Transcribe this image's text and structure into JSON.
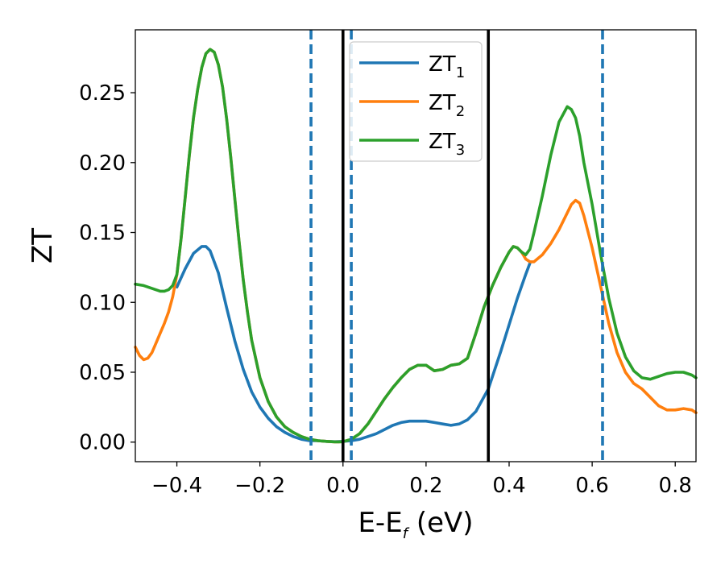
{
  "chart_data": {
    "type": "line",
    "title": "",
    "xlabel_main": "E-E",
    "xlabel_sub": "f",
    "xlabel_unit": " (eV)",
    "ylabel": "ZT",
    "xlim": [
      -0.5,
      0.85
    ],
    "ylim": [
      -0.014,
      0.295
    ],
    "xticks": [
      -0.4,
      -0.2,
      0.0,
      0.2,
      0.4,
      0.6,
      0.8
    ],
    "xtick_labels": [
      "−0.4",
      "−0.2",
      "0.0",
      "0.2",
      "0.4",
      "0.6",
      "0.8"
    ],
    "yticks": [
      0.0,
      0.05,
      0.1,
      0.15,
      0.2,
      0.25
    ],
    "ytick_labels": [
      "0.00",
      "0.05",
      "0.10",
      "0.15",
      "0.20",
      "0.25"
    ],
    "grid": false,
    "legend_position": "top-center",
    "vlines_solid": [
      0.0,
      0.35
    ],
    "vlines_dashed": [
      -0.077,
      0.02,
      0.625
    ],
    "vline_solid_color": "#000000",
    "vline_dashed_color": "#1f77b4",
    "series": [
      {
        "name_main": "ZT",
        "name_sub": "1",
        "color": "#1f77b4",
        "x": [
          -0.4,
          -0.38,
          -0.36,
          -0.34,
          -0.33,
          -0.32,
          -0.3,
          -0.28,
          -0.26,
          -0.24,
          -0.22,
          -0.2,
          -0.18,
          -0.16,
          -0.14,
          -0.12,
          -0.1,
          -0.08,
          -0.06,
          -0.04,
          -0.02,
          0.0,
          0.02,
          0.04,
          0.06,
          0.08,
          0.1,
          0.12,
          0.14,
          0.16,
          0.18,
          0.2,
          0.22,
          0.24,
          0.26,
          0.28,
          0.3,
          0.32,
          0.35,
          0.38,
          0.4,
          0.42,
          0.44,
          0.45
        ],
        "y": [
          0.111,
          0.124,
          0.135,
          0.14,
          0.14,
          0.137,
          0.121,
          0.096,
          0.072,
          0.052,
          0.036,
          0.025,
          0.017,
          0.011,
          0.007,
          0.004,
          0.002,
          0.001,
          0.001,
          0.0005,
          0.0003,
          0.0005,
          0.001,
          0.002,
          0.004,
          0.006,
          0.009,
          0.012,
          0.014,
          0.015,
          0.015,
          0.015,
          0.014,
          0.013,
          0.012,
          0.013,
          0.016,
          0.022,
          0.038,
          0.065,
          0.084,
          0.103,
          0.12,
          0.128
        ]
      },
      {
        "name_main": "ZT",
        "name_sub": "2",
        "color": "#ff7f0e",
        "x": [
          -0.5,
          -0.49,
          -0.48,
          -0.47,
          -0.46,
          -0.45,
          -0.44,
          -0.43,
          -0.42,
          -0.41,
          -0.4,
          -0.39,
          -0.38,
          -0.37,
          -0.36,
          -0.35,
          -0.34,
          -0.33,
          -0.32,
          -0.31,
          -0.3,
          -0.29,
          -0.28,
          -0.27,
          -0.26,
          -0.25,
          -0.24,
          -0.23,
          -0.22,
          -0.2,
          -0.18,
          -0.16,
          -0.14,
          -0.12,
          -0.1,
          -0.08,
          -0.06,
          -0.04,
          -0.02,
          -0.01,
          0.0,
          0.02,
          0.04,
          0.06,
          0.08,
          0.1,
          0.12,
          0.14,
          0.16,
          0.18,
          0.2,
          0.22,
          0.24,
          0.26,
          0.28,
          0.3,
          0.32,
          0.34,
          0.36,
          0.38,
          0.4,
          0.41,
          0.42,
          0.43,
          0.44,
          0.45,
          0.46,
          0.48,
          0.5,
          0.52,
          0.54,
          0.55,
          0.56,
          0.57,
          0.58,
          0.6,
          0.62,
          0.64,
          0.66,
          0.68,
          0.7,
          0.72,
          0.74,
          0.76,
          0.78,
          0.8,
          0.82,
          0.84,
          0.85
        ],
        "y": [
          0.068,
          0.062,
          0.059,
          0.06,
          0.064,
          0.071,
          0.078,
          0.085,
          0.093,
          0.104,
          0.12,
          0.145,
          0.175,
          0.205,
          0.232,
          0.252,
          0.268,
          0.278,
          0.281,
          0.279,
          0.27,
          0.254,
          0.231,
          0.203,
          0.173,
          0.143,
          0.116,
          0.093,
          0.073,
          0.046,
          0.029,
          0.018,
          0.011,
          0.007,
          0.004,
          0.002,
          0.001,
          0.0005,
          0.0002,
          0.0001,
          0.0003,
          0.002,
          0.006,
          0.013,
          0.022,
          0.031,
          0.039,
          0.046,
          0.052,
          0.055,
          0.055,
          0.051,
          0.052,
          0.055,
          0.056,
          0.06,
          0.078,
          0.097,
          0.112,
          0.125,
          0.136,
          0.14,
          0.139,
          0.136,
          0.131,
          0.129,
          0.129,
          0.134,
          0.142,
          0.152,
          0.164,
          0.17,
          0.173,
          0.171,
          0.162,
          0.139,
          0.112,
          0.085,
          0.064,
          0.05,
          0.042,
          0.038,
          0.032,
          0.026,
          0.023,
          0.023,
          0.024,
          0.023,
          0.021
        ]
      },
      {
        "name_main": "ZT",
        "name_sub": "3",
        "color": "#2ca02c",
        "x": [
          -0.5,
          -0.48,
          -0.46,
          -0.44,
          -0.43,
          -0.42,
          -0.41,
          -0.4,
          -0.39,
          -0.38,
          -0.37,
          -0.36,
          -0.35,
          -0.34,
          -0.33,
          -0.32,
          -0.31,
          -0.3,
          -0.29,
          -0.28,
          -0.27,
          -0.26,
          -0.25,
          -0.24,
          -0.23,
          -0.22,
          -0.2,
          -0.18,
          -0.16,
          -0.14,
          -0.12,
          -0.1,
          -0.08,
          -0.06,
          -0.04,
          -0.02,
          -0.01,
          0.0,
          0.02,
          0.04,
          0.06,
          0.08,
          0.1,
          0.12,
          0.14,
          0.16,
          0.18,
          0.2,
          0.22,
          0.24,
          0.26,
          0.28,
          0.3,
          0.32,
          0.34,
          0.36,
          0.38,
          0.4,
          0.41,
          0.42,
          0.43,
          0.44,
          0.45,
          0.46,
          0.48,
          0.5,
          0.52,
          0.54,
          0.55,
          0.56,
          0.57,
          0.58,
          0.6,
          0.62,
          0.64,
          0.66,
          0.68,
          0.7,
          0.72,
          0.74,
          0.76,
          0.78,
          0.8,
          0.82,
          0.84,
          0.85
        ],
        "y": [
          0.113,
          0.112,
          0.11,
          0.108,
          0.108,
          0.109,
          0.112,
          0.12,
          0.145,
          0.175,
          0.205,
          0.232,
          0.252,
          0.268,
          0.278,
          0.281,
          0.279,
          0.27,
          0.254,
          0.231,
          0.203,
          0.173,
          0.143,
          0.116,
          0.093,
          0.073,
          0.046,
          0.029,
          0.018,
          0.011,
          0.007,
          0.004,
          0.002,
          0.001,
          0.0005,
          0.0002,
          0.0001,
          0.0003,
          0.002,
          0.006,
          0.013,
          0.022,
          0.031,
          0.039,
          0.046,
          0.052,
          0.055,
          0.055,
          0.051,
          0.052,
          0.055,
          0.056,
          0.06,
          0.078,
          0.097,
          0.112,
          0.125,
          0.136,
          0.14,
          0.139,
          0.136,
          0.134,
          0.138,
          0.15,
          0.176,
          0.205,
          0.229,
          0.24,
          0.238,
          0.232,
          0.219,
          0.2,
          0.17,
          0.135,
          0.103,
          0.078,
          0.061,
          0.051,
          0.046,
          0.045,
          0.047,
          0.049,
          0.05,
          0.05,
          0.048,
          0.046
        ]
      }
    ]
  }
}
